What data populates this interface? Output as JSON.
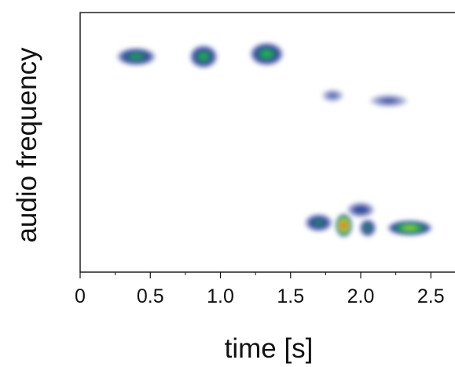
{
  "chart_data": {
    "type": "heatmap",
    "title": "",
    "xlabel": "time [s]",
    "ylabel": "audio frequency",
    "xlim": [
      0,
      2.7
    ],
    "ylim": [
      0,
      1
    ],
    "x_ticks": [
      {
        "value": 0,
        "label": "0"
      },
      {
        "value": 0.5,
        "label": "0.5"
      },
      {
        "value": 1.0,
        "label": "1.0"
      },
      {
        "value": 1.5,
        "label": "1.5"
      },
      {
        "value": 2.0,
        "label": "2.0"
      },
      {
        "value": 2.5,
        "label": "2.5"
      }
    ],
    "y_ticks": [],
    "grid": false,
    "colormap": [
      "#ffffff",
      "#2b3f9e",
      "#21b14a",
      "#d9e021",
      "#e8402a"
    ],
    "intensity_range": [
      0,
      1
    ],
    "blobs": [
      {
        "t": 0.4,
        "f": 0.83,
        "dt": 0.14,
        "df": 0.035,
        "intensity": 0.45
      },
      {
        "t": 0.88,
        "f": 0.83,
        "dt": 0.1,
        "df": 0.045,
        "intensity": 0.48
      },
      {
        "t": 1.33,
        "f": 0.84,
        "dt": 0.12,
        "df": 0.045,
        "intensity": 0.5
      },
      {
        "t": 1.8,
        "f": 0.68,
        "dt": 0.08,
        "df": 0.025,
        "intensity": 0.2
      },
      {
        "t": 2.2,
        "f": 0.66,
        "dt": 0.14,
        "df": 0.025,
        "intensity": 0.22
      },
      {
        "t": 1.7,
        "f": 0.19,
        "dt": 0.1,
        "df": 0.035,
        "intensity": 0.4
      },
      {
        "t": 1.88,
        "f": 0.18,
        "dt": 0.06,
        "df": 0.045,
        "intensity": 0.97
      },
      {
        "t": 2.05,
        "f": 0.17,
        "dt": 0.06,
        "df": 0.035,
        "intensity": 0.42
      },
      {
        "t": 2.35,
        "f": 0.17,
        "dt": 0.16,
        "df": 0.03,
        "intensity": 0.64
      },
      {
        "t": 2.0,
        "f": 0.24,
        "dt": 0.1,
        "df": 0.03,
        "intensity": 0.3
      }
    ]
  }
}
